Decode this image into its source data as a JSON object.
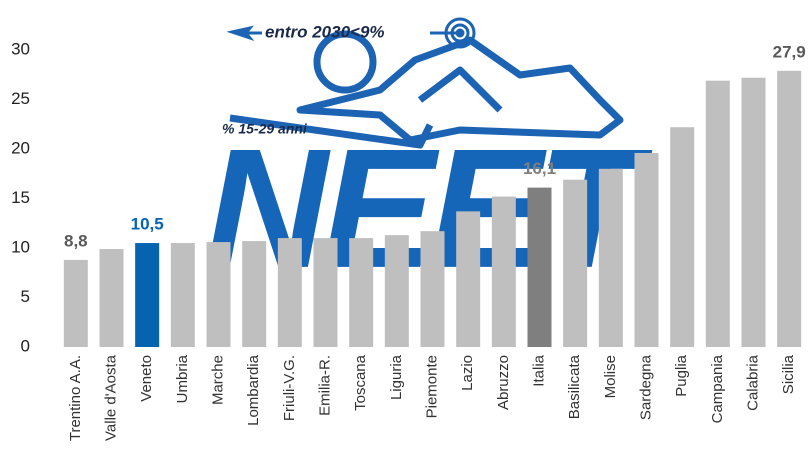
{
  "chart_data": {
    "type": "bar",
    "annotations": [
      "entro 2030<9%",
      "% 15-29 anni",
      "NEET"
    ],
    "categories": [
      "Trentino A.A.",
      "Valle d'Aosta",
      "Veneto",
      "Umbria",
      "Marche",
      "Lombardia",
      "Friuli-V.G.",
      "Emilia-R.",
      "Toscana",
      "Liguria",
      "Piemonte",
      "Lazio",
      "Abruzzo",
      "Italia",
      "Basilicata",
      "Molise",
      "Sardegna",
      "Puglia",
      "Campania",
      "Calabria",
      "Sicilia"
    ],
    "values": [
      8.8,
      9.9,
      10.5,
      10.5,
      10.6,
      10.7,
      11.0,
      11.0,
      11.0,
      11.3,
      11.7,
      13.7,
      15.2,
      16.1,
      16.9,
      18.0,
      19.6,
      22.2,
      26.9,
      27.2,
      27.9
    ],
    "value_labels": [
      "8,8",
      null,
      "10,5",
      null,
      null,
      null,
      null,
      null,
      null,
      null,
      null,
      null,
      null,
      "16,1",
      null,
      null,
      null,
      null,
      null,
      null,
      "27,9"
    ],
    "colors": [
      "#bfbfbf",
      "#bfbfbf",
      "#0563b0",
      "#bfbfbf",
      "#bfbfbf",
      "#bfbfbf",
      "#bfbfbf",
      "#bfbfbf",
      "#bfbfbf",
      "#bfbfbf",
      "#bfbfbf",
      "#bfbfbf",
      "#bfbfbf",
      "#7f7f7f",
      "#bfbfbf",
      "#bfbfbf",
      "#bfbfbf",
      "#bfbfbf",
      "#bfbfbf",
      "#bfbfbf",
      "#bfbfbf"
    ],
    "value_label_colors": [
      "#595959",
      null,
      "#0563b0",
      null,
      null,
      null,
      null,
      null,
      null,
      null,
      null,
      null,
      null,
      "#7f7f7f",
      null,
      null,
      null,
      null,
      null,
      null,
      "#595959"
    ],
    "ylim": [
      0,
      30
    ],
    "yticks": [
      0,
      5,
      10,
      15,
      20,
      25,
      30
    ],
    "grid": false
  }
}
